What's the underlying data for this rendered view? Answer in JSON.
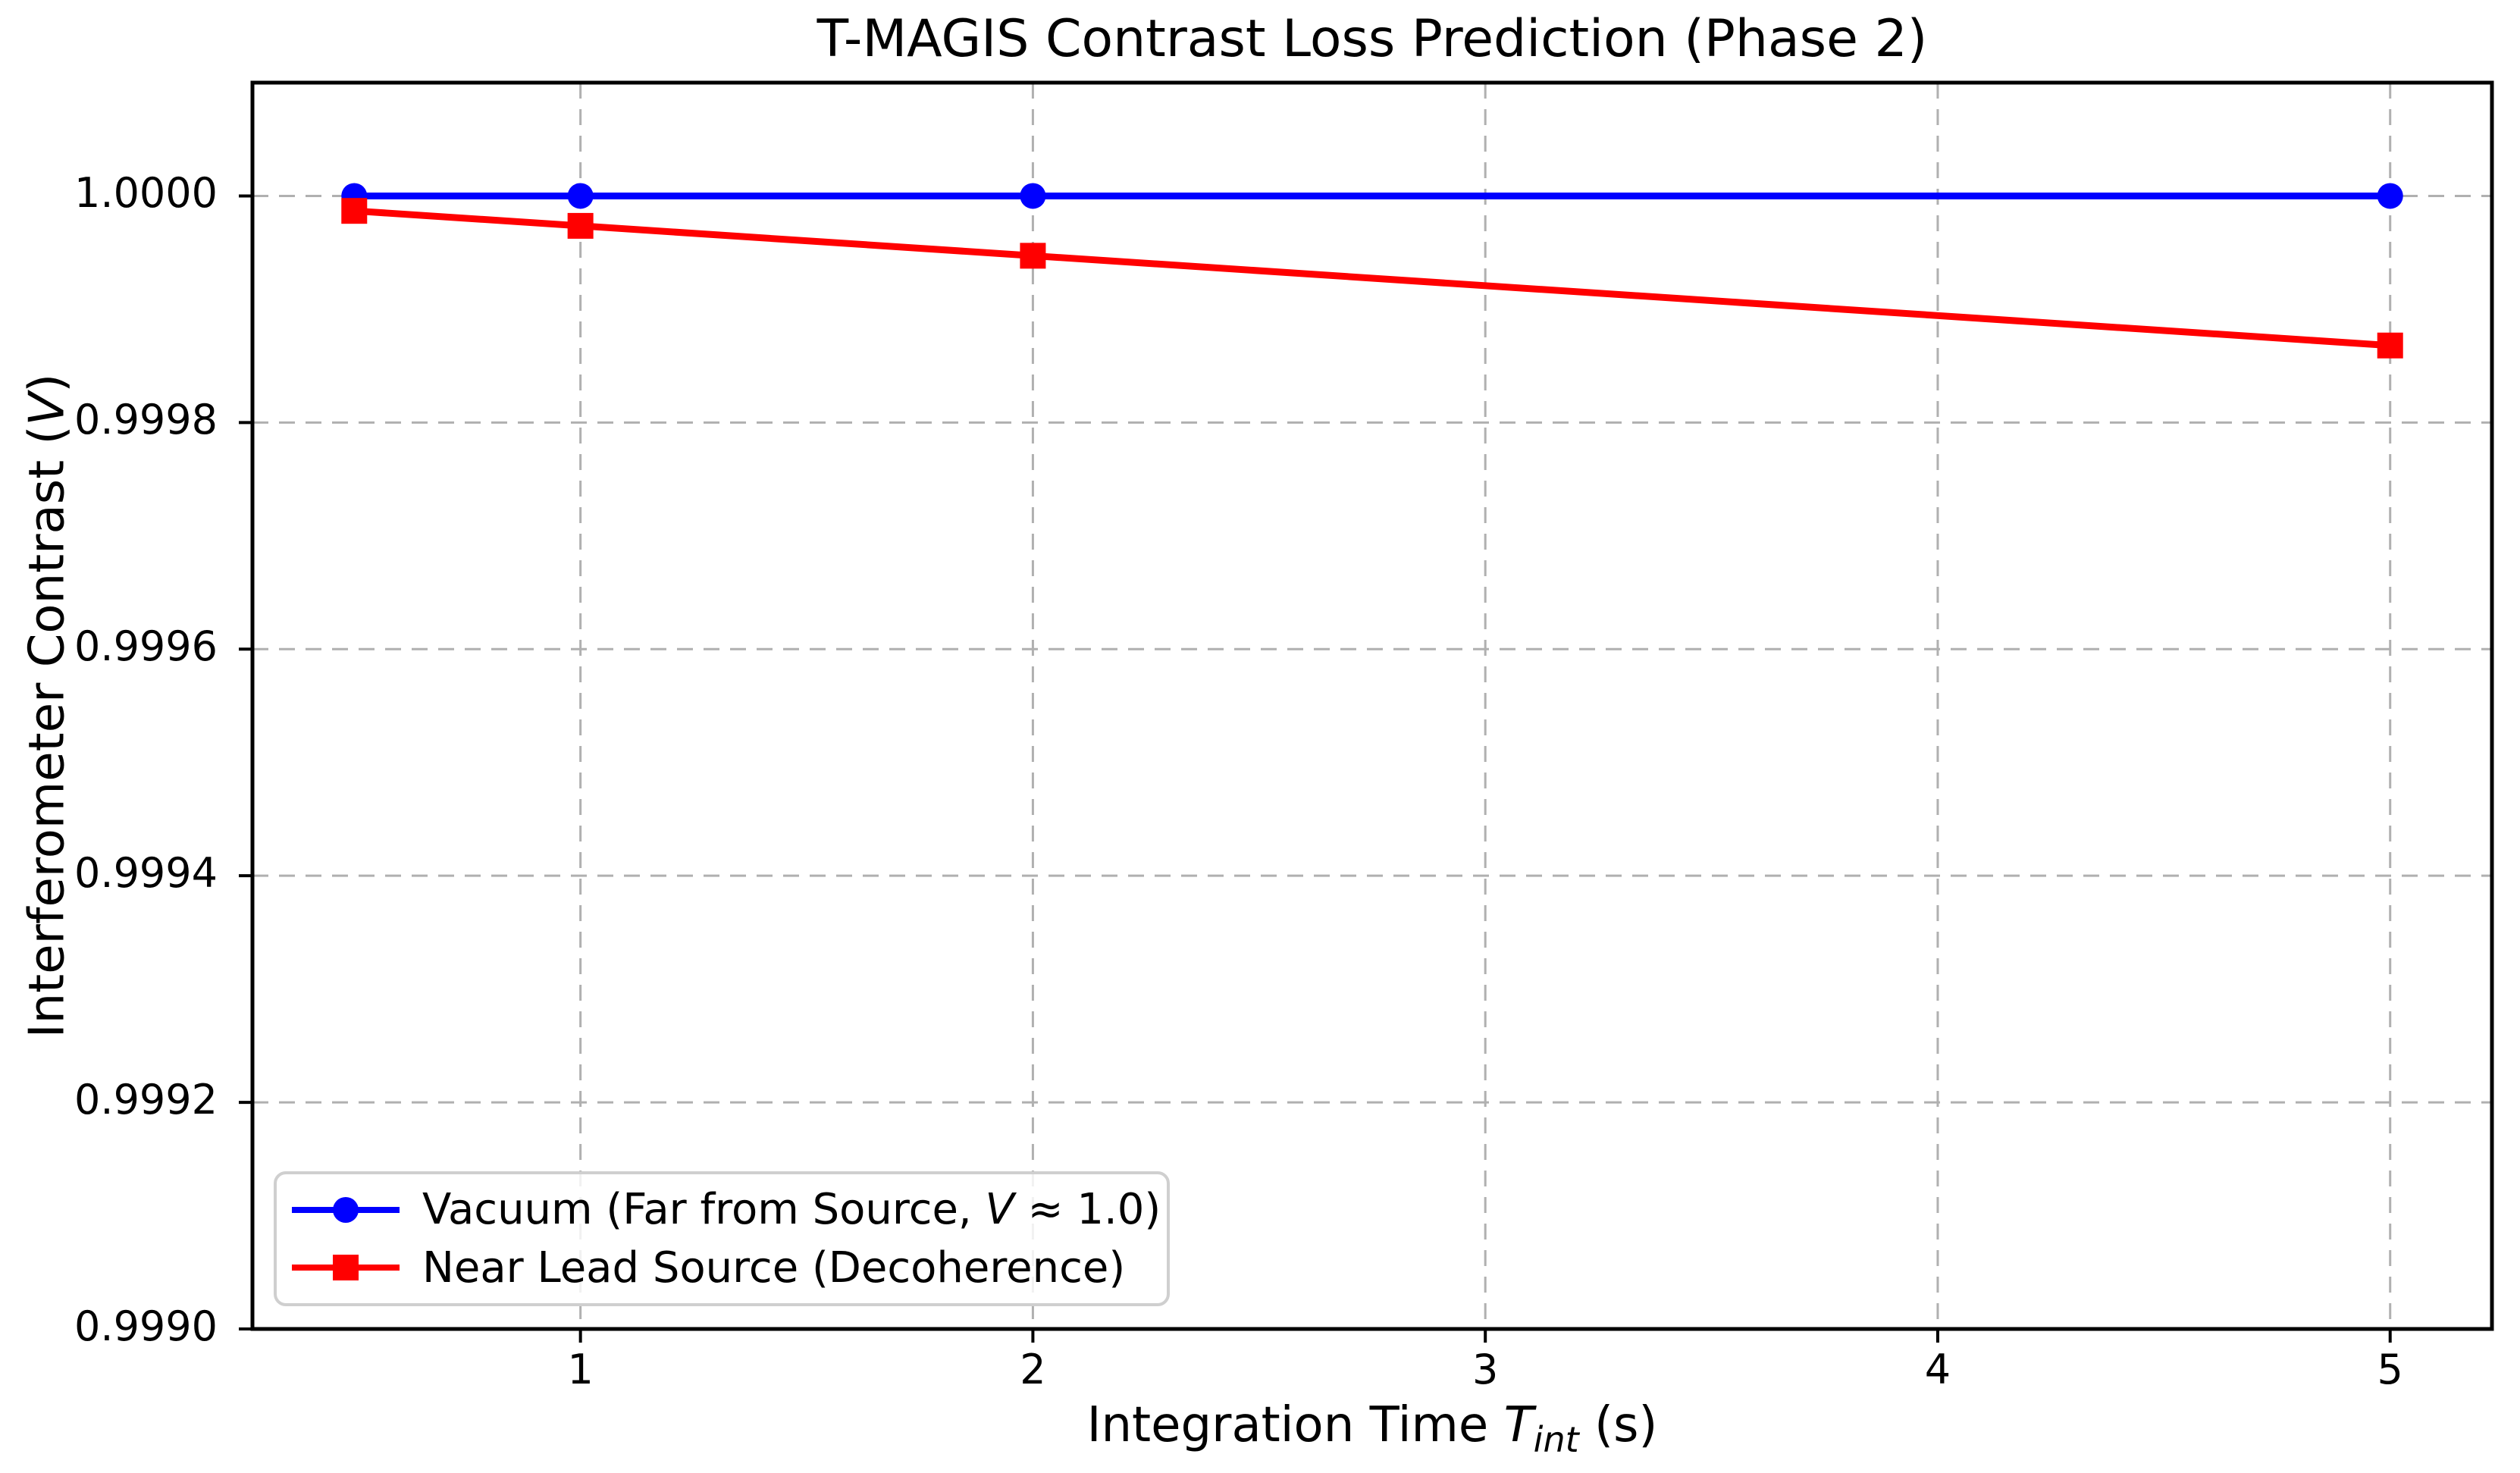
{
  "title": "T-MAGIS Contrast Loss Prediction (Phase 2)",
  "xlabel": {
    "pre": "Integration Time ",
    "var": "T",
    "sub": "int",
    "post": " (s)"
  },
  "ylabel": {
    "pre": "Interferometer Contrast (",
    "var": "V",
    "post": ")"
  },
  "legend": {
    "position": "lower left",
    "entries": [
      {
        "pre": "Vacuum (Far from Source, ",
        "var": "V",
        "post": " ≈ 1.0)",
        "marker": "circle",
        "color": "#0000ff"
      },
      {
        "pre": "Near Lead Source (Decoherence)",
        "var": "",
        "post": "",
        "marker": "square",
        "color": "#ff0000"
      }
    ]
  },
  "chart_data": {
    "type": "line",
    "title": "T-MAGIS Contrast Loss Prediction (Phase 2)",
    "xlabel": "Integration Time T_int (s)",
    "ylabel": "Interferometer Contrast (V)",
    "x": [
      0.5,
      1,
      2,
      5
    ],
    "series": [
      {
        "name": "Vacuum (Far from Source, V ≈ 1.0)",
        "color": "#0000ff",
        "marker": "circle",
        "values": [
          1.0,
          1.0,
          1.0,
          1.0
        ]
      },
      {
        "name": "Near Lead Source (Decoherence)",
        "color": "#ff0000",
        "marker": "square",
        "values": [
          0.9999868,
          0.9999736,
          0.9999472,
          0.999868
        ]
      }
    ],
    "xlim": [
      0.275,
      5.225
    ],
    "ylim": [
      0.999,
      1.0001
    ],
    "xticks": [
      {
        "value": 1,
        "label": "1"
      },
      {
        "value": 2,
        "label": "2"
      },
      {
        "value": 3,
        "label": "3"
      },
      {
        "value": 4,
        "label": "4"
      },
      {
        "value": 5,
        "label": "5"
      }
    ],
    "yticks": [
      {
        "value": 1.0,
        "label": "1.0000"
      },
      {
        "value": 0.9998,
        "label": "0.9998"
      },
      {
        "value": 0.9996,
        "label": "0.9996"
      },
      {
        "value": 0.9994,
        "label": "0.9994"
      },
      {
        "value": 0.9992,
        "label": "0.9992"
      },
      {
        "value": 0.999,
        "label": "0.9990"
      }
    ],
    "grid": true,
    "grid_style": "dashed",
    "legend_position": "lower left"
  },
  "colors": {
    "background": "#ffffff",
    "axes_frame": "#000000",
    "grid": "#b0b0b0",
    "legend_border": "#cfcfcf",
    "vacuum_series": "#0000ff",
    "lead_series": "#ff0000"
  }
}
